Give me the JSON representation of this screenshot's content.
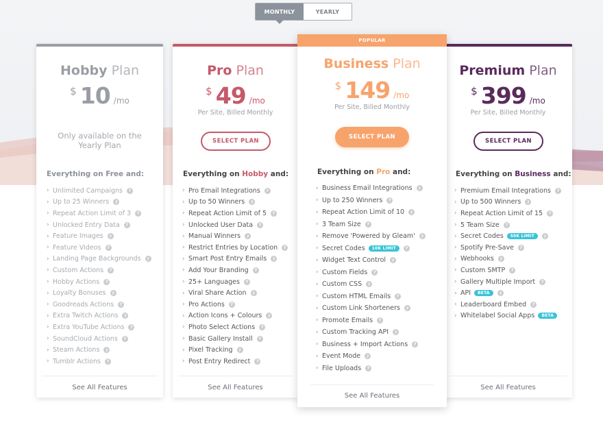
{
  "toggle": {
    "monthly": "MONTHLY",
    "yearly": "YEARLY",
    "active": "monthly"
  },
  "colors": {
    "hobby": "#9a9ea4",
    "pro": "#c5596a",
    "business": "#f7a36c",
    "premium": "#5a2a5c",
    "badge": "#39c3d8"
  },
  "plans": {
    "hobby": {
      "name_bold": "Hobby",
      "name_thin": "Plan",
      "currency": "$",
      "amount": "10",
      "period": "/mo",
      "unavailable": "Only available on the Yearly Plan",
      "everything_prefix": "Everything on ",
      "everything_ref": "Free",
      "everything_suffix": " and:",
      "features": [
        {
          "label": "Unlimited Campaigns"
        },
        {
          "label": "Up to 25 Winners"
        },
        {
          "label": "Repeat Action Limit of 3"
        },
        {
          "label": "Unlocked Entry Data"
        },
        {
          "label": "Feature Images"
        },
        {
          "label": "Feature Videos"
        },
        {
          "label": "Landing Page Backgrounds"
        },
        {
          "label": "Custom Actions"
        },
        {
          "label": "Hobby Actions"
        },
        {
          "label": "Loyalty Bonuses"
        },
        {
          "label": "Goodreads Actions"
        },
        {
          "label": "Extra Twitch Actions"
        },
        {
          "label": "Extra YouTube Actions"
        },
        {
          "label": "SoundCloud Actions"
        },
        {
          "label": "Steam Actions"
        },
        {
          "label": "Tumblr Actions"
        }
      ],
      "see_all": "See All Features"
    },
    "pro": {
      "name_bold": "Pro",
      "name_thin": "Plan",
      "currency": "$",
      "amount": "49",
      "period": "/mo",
      "billed": "Per Site, Billed Monthly",
      "button": "SELECT PLAN",
      "everything_prefix": "Everything on ",
      "everything_ref": "Hobby",
      "everything_suffix": " and:",
      "features": [
        {
          "label": "Pro Email Integrations"
        },
        {
          "label": "Up to 50 Winners"
        },
        {
          "label": "Repeat Action Limit of 5"
        },
        {
          "label": "Unlocked User Data"
        },
        {
          "label": "Manual Winners"
        },
        {
          "label": "Restrict Entries by Location"
        },
        {
          "label": "Smart Post Entry Emails"
        },
        {
          "label": "Add Your Branding"
        },
        {
          "label": "25+ Languages"
        },
        {
          "label": "Viral Share Action"
        },
        {
          "label": "Pro Actions"
        },
        {
          "label": "Action Icons + Colours"
        },
        {
          "label": "Photo Select Actions"
        },
        {
          "label": "Basic Gallery Install"
        },
        {
          "label": "Pixel Tracking"
        },
        {
          "label": "Post Entry Redirect"
        }
      ],
      "see_all": "See All Features"
    },
    "business": {
      "ribbon": "POPULAR",
      "name_bold": "Business",
      "name_thin": "Plan",
      "currency": "$",
      "amount": "149",
      "period": "/mo",
      "billed": "Per Site, Billed Monthly",
      "button": "SELECT PLAN",
      "everything_prefix": "Everything on ",
      "everything_ref": "Pro",
      "everything_suffix": " and:",
      "features": [
        {
          "label": "Business Email Integrations"
        },
        {
          "label": "Up to 250 Winners"
        },
        {
          "label": "Repeat Action Limit of 10"
        },
        {
          "label": "3 Team Size"
        },
        {
          "label": "Remove 'Powered by Gleam'"
        },
        {
          "label": "Secret Codes",
          "badge": "10K LIMIT"
        },
        {
          "label": "Widget Text Control"
        },
        {
          "label": "Custom Fields"
        },
        {
          "label": "Custom CSS"
        },
        {
          "label": "Custom HTML Emails"
        },
        {
          "label": "Custom Link Shorteners"
        },
        {
          "label": "Promote Emails"
        },
        {
          "label": "Custom Tracking API"
        },
        {
          "label": "Business + Import Actions"
        },
        {
          "label": "Event Mode"
        },
        {
          "label": "File Uploads"
        }
      ],
      "see_all": "See All Features"
    },
    "premium": {
      "name_bold": "Premium",
      "name_thin": "Plan",
      "currency": "$",
      "amount": "399",
      "period": "/mo",
      "billed": "Per Site, Billed Monthly",
      "button": "SELECT PLAN",
      "everything_prefix": "Everything on ",
      "everything_ref": "Business",
      "everything_suffix": " and:",
      "features": [
        {
          "label": "Premium Email Integrations"
        },
        {
          "label": "Up to 500 Winners"
        },
        {
          "label": "Repeat Action Limit of 15"
        },
        {
          "label": "5 Team Size"
        },
        {
          "label": "Secret Codes",
          "badge": "50K LIMIT"
        },
        {
          "label": "Spotify Pre-Save"
        },
        {
          "label": "Webhooks"
        },
        {
          "label": "Custom SMTP"
        },
        {
          "label": "Gallery Multiple Import"
        },
        {
          "label": "API",
          "badge": "BETA"
        },
        {
          "label": "Leaderboard Embed"
        },
        {
          "label": "Whitelabel Social Apps",
          "badge": "BETA",
          "noq": true
        }
      ],
      "see_all": "See All Features"
    }
  }
}
